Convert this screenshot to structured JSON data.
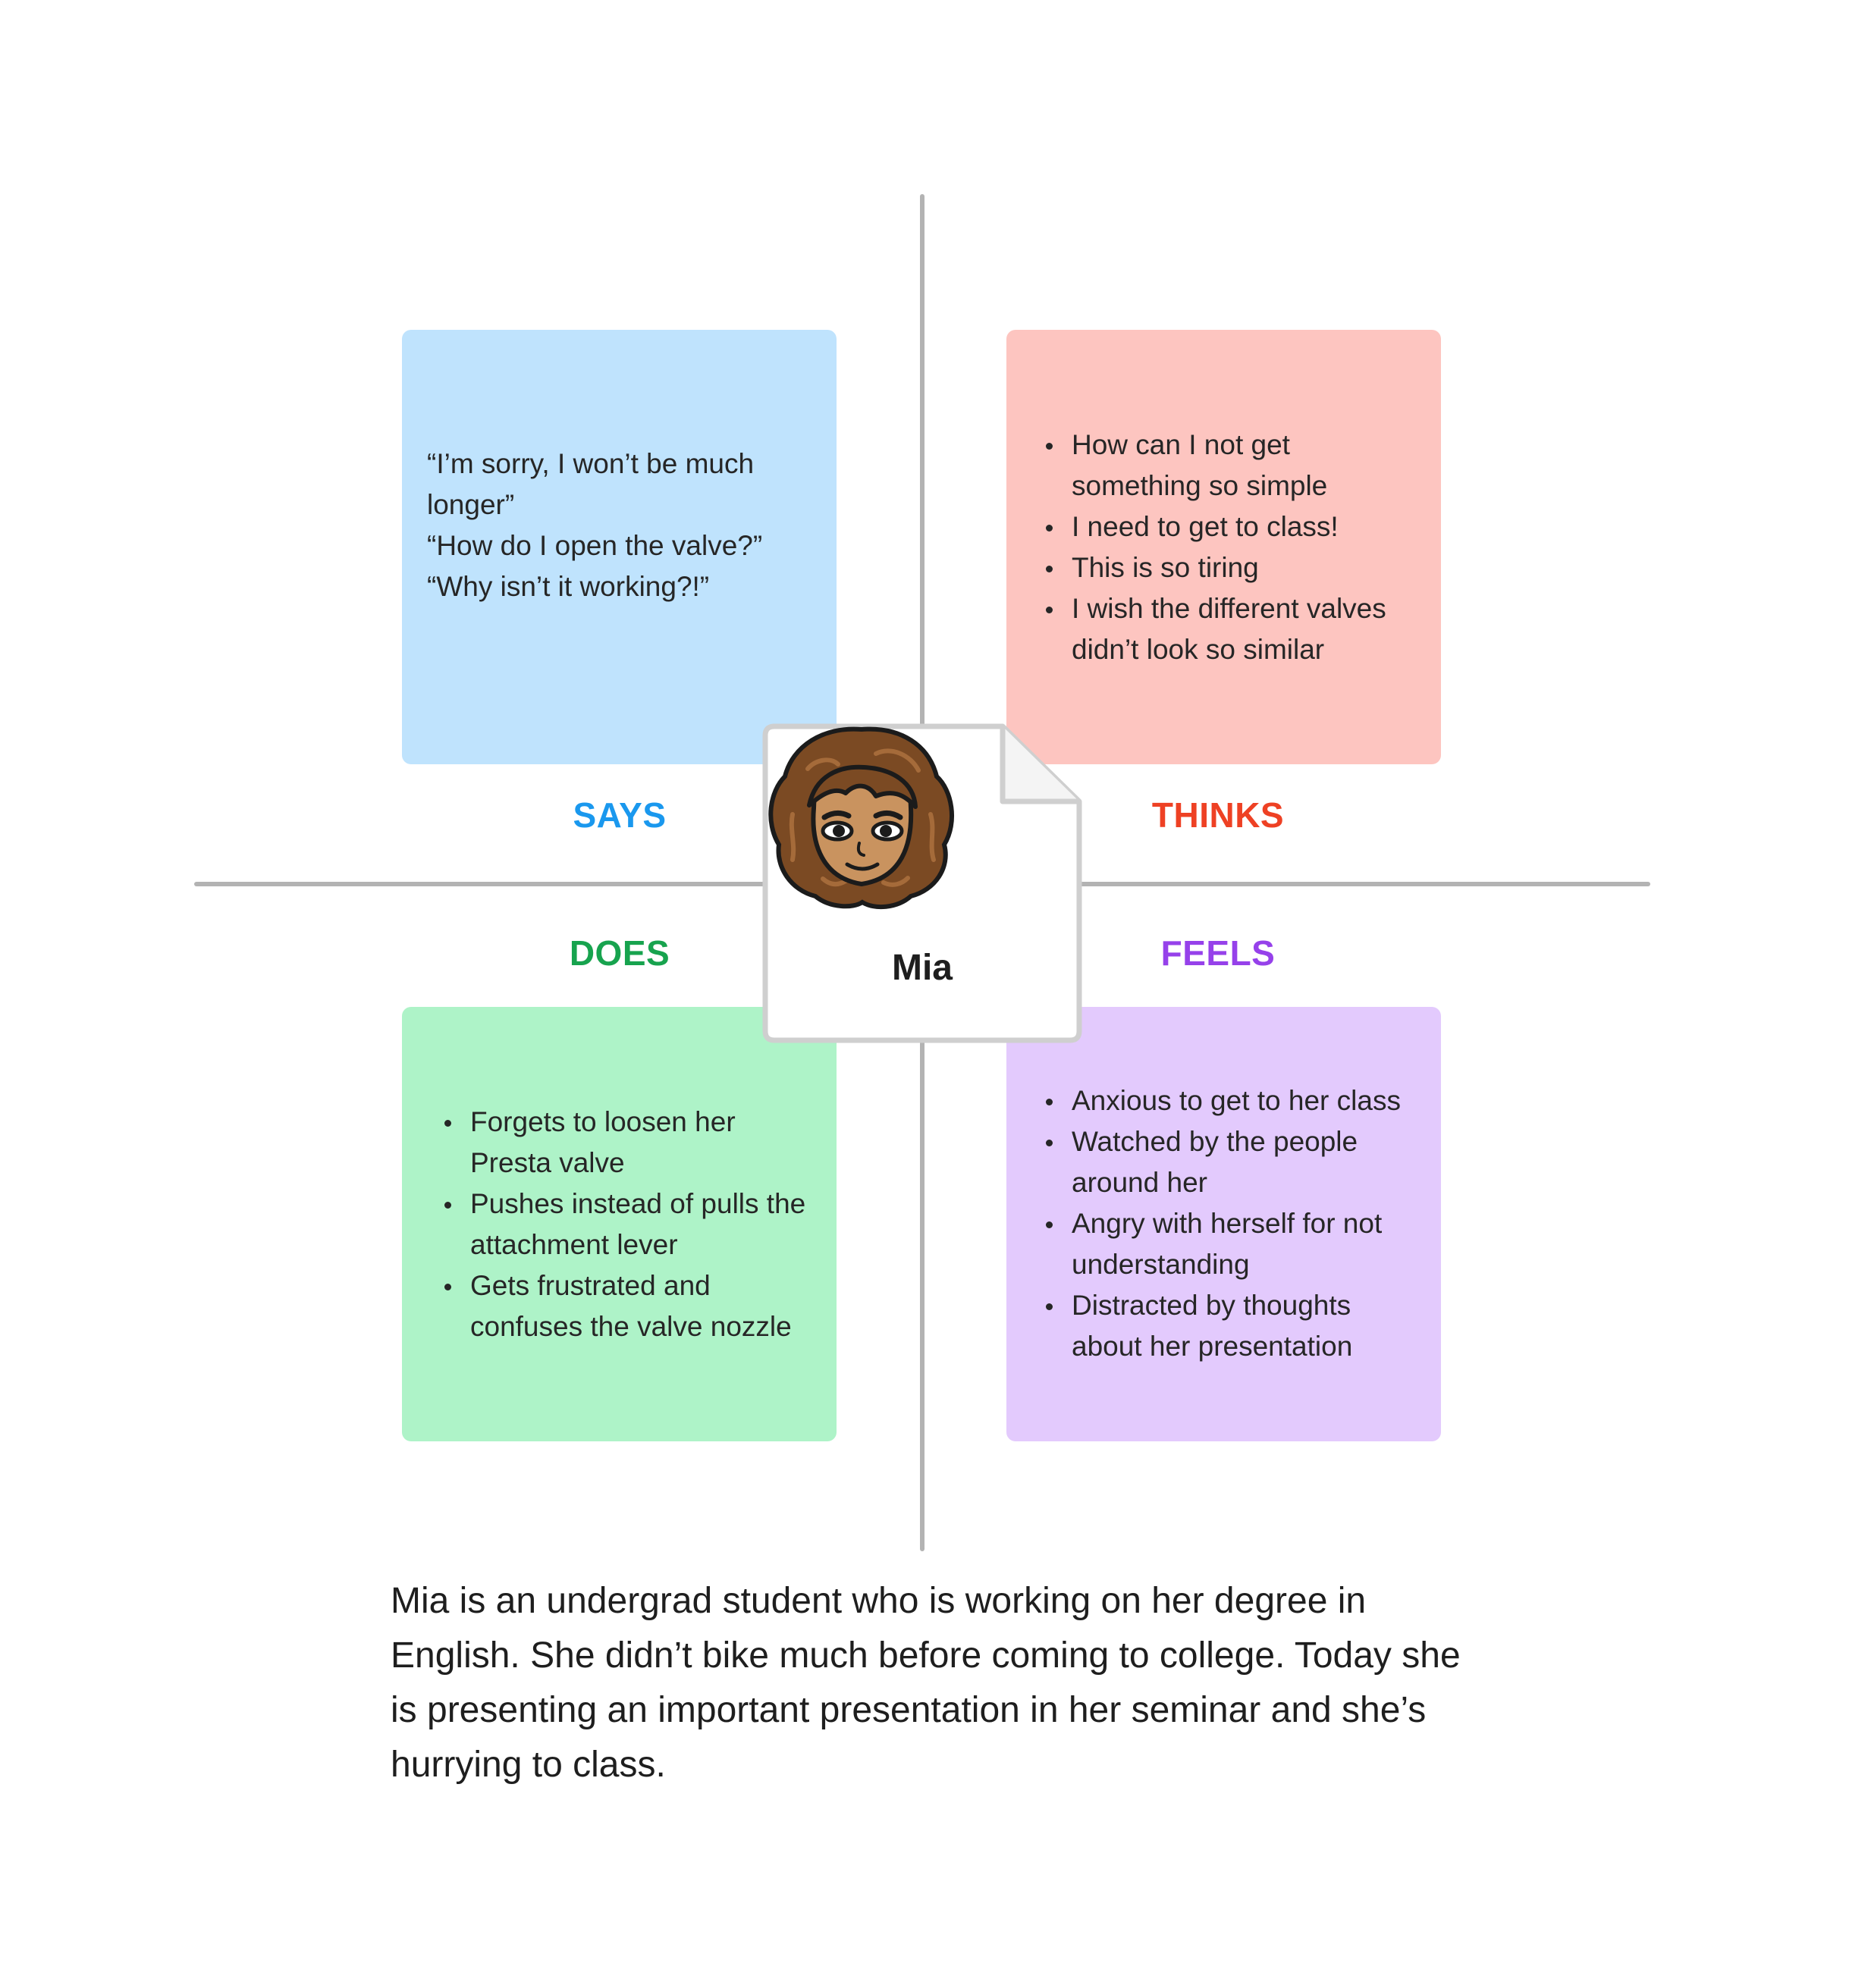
{
  "quadrants": {
    "says": {
      "label": "SAYS",
      "color": "#1a98ee",
      "note_color": "#bfe3fd",
      "quotes": [
        "“I’m sorry, I won’t be much longer”",
        "“How do I open the valve?”",
        "“Why isn’t it working?!”"
      ]
    },
    "thinks": {
      "label": "THINKS",
      "color": "#ee4124",
      "note_color": "#fdc5c0",
      "items": [
        "How can I not get something so simple",
        "I need to get to class!",
        "This is so tiring",
        "I wish the different valves didn’t look so similar"
      ]
    },
    "does": {
      "label": "DOES",
      "color": "#17a34e",
      "note_color": "#aef3c8",
      "items": [
        "Forgets to loosen her Presta valve",
        "Pushes instead of pulls the attachment lever",
        "Gets frustrated and confuses the valve nozzle"
      ]
    },
    "feels": {
      "label": "FEELS",
      "color": "#9641ea",
      "note_color": "#e3cafd",
      "items": [
        "Anxious to get to her class",
        "Watched by the people around her",
        "Angry with herself for not understanding",
        "Distracted by thoughts about her presentation"
      ]
    }
  },
  "persona": {
    "name": "Mia",
    "avatar_icon": "avatar-face-icon"
  },
  "description": "Mia is an undergrad student who is working on her degree in English. She didn’t bike much before coming to college. Today she is presenting an important presentation in her seminar and she’s hurrying to class."
}
